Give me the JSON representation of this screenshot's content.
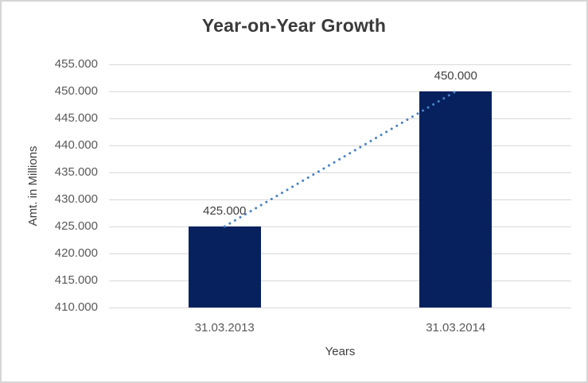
{
  "chart_data": {
    "type": "bar",
    "title": "Year-on-Year Growth",
    "xlabel": "Years",
    "ylabel": "Amt. in Millions",
    "categories": [
      "31.03.2013",
      "31.03.2014"
    ],
    "values": [
      425000,
      450000
    ],
    "data_labels": [
      "425.000",
      "450.000"
    ],
    "y_ticks": [
      "455.000",
      "450.000",
      "445.000",
      "440.000",
      "435.000",
      "430.000",
      "425.000",
      "420.000",
      "415.000",
      "410.000"
    ],
    "ylim": [
      410000,
      455000
    ],
    "y_tick_step": 5000,
    "grid": true,
    "legend": "none",
    "trendline": true,
    "colors": {
      "bar": "#07215f",
      "trendline": "#4a82c4",
      "gridline": "#d9d9d9",
      "title_text": "#3a3a3a",
      "tick_text": "#595959",
      "label_text": "#404040",
      "frame_border": "#d6d6d6",
      "background": "#ffffff"
    }
  }
}
